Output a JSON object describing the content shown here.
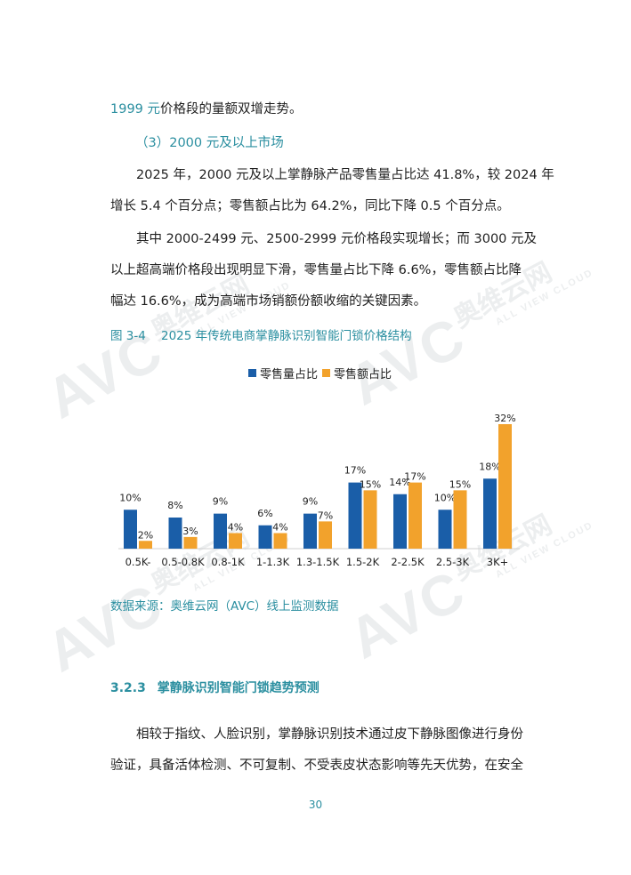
{
  "paragraphs": {
    "p1": "1999 元价格段的量额双增走势。",
    "p1_highlight": "1999 元",
    "p1_rest": "价格段的量额双增走势。",
    "subheading": "（3）2000 元及以上市场",
    "p2_line1": "2025 年，2000 元及以上掌静脉产品零售量占比达 41.8%，较 2024 年",
    "p2_line2": "增长 5.4 个百分点；零售额占比为 64.2%，同比下降 0.5 个百分点。",
    "p3_line1": "其中 2000-2499 元、2500-2999 元价格段实现增长；而 3000 元及",
    "p3_line2": "以上超高端价格段出现明显下滑，零售量占比下降 6.6%，零售额占比降",
    "p3_line3": "幅达 16.6%，成为高端市场销额份额收缩的关键因素。"
  },
  "figure": {
    "caption": "图 3-4    2025 年传统电商掌静脉识别智能门锁价格结构",
    "source": "数据来源：奥维云网（AVC）线上监测数据"
  },
  "section": {
    "number": "3.2.3",
    "title": "掌静脉识别智能门锁趋势预测",
    "p4_line1": "相较于指纹、人脸识别，掌静脉识别技术通过皮下静脉图像进行身份",
    "p4_line2": "验证，具备活体检测、不可复制、不受表皮状态影响等先天优势，在安全"
  },
  "page_number": "30",
  "watermark": {
    "logo": "AVC",
    "cn": "奥维云网",
    "en": "ALL VIEW CLOUD"
  },
  "colors": {
    "series1": "#1a5ea8",
    "series2": "#f2a22c",
    "teal": "#2b8fa0"
  },
  "chart_data": {
    "type": "bar",
    "title": "",
    "categories": [
      "0.5K-",
      "0.5-0.8K",
      "0.8-1K",
      "1-1.3K",
      "1.3-1.5K",
      "1.5-2K",
      "2-2.5K",
      "2.5-3K",
      "3K+"
    ],
    "series": [
      {
        "name": "零售量占比",
        "values": [
          10,
          8,
          9,
          6,
          9,
          17,
          14,
          10,
          18
        ],
        "labels": [
          "10%",
          "8%",
          "9%",
          "6%",
          "9%",
          "17%",
          "14%",
          "10%",
          "18%"
        ]
      },
      {
        "name": "零售额占比",
        "values": [
          2,
          3,
          4,
          4,
          7,
          15,
          17,
          15,
          32
        ],
        "labels": [
          "2%",
          "3%",
          "4%",
          "4%",
          "7%",
          "15%",
          "17%",
          "15%",
          "32%"
        ]
      }
    ],
    "legend_position": "top",
    "grid": false,
    "ylim": [
      0,
      32
    ]
  }
}
